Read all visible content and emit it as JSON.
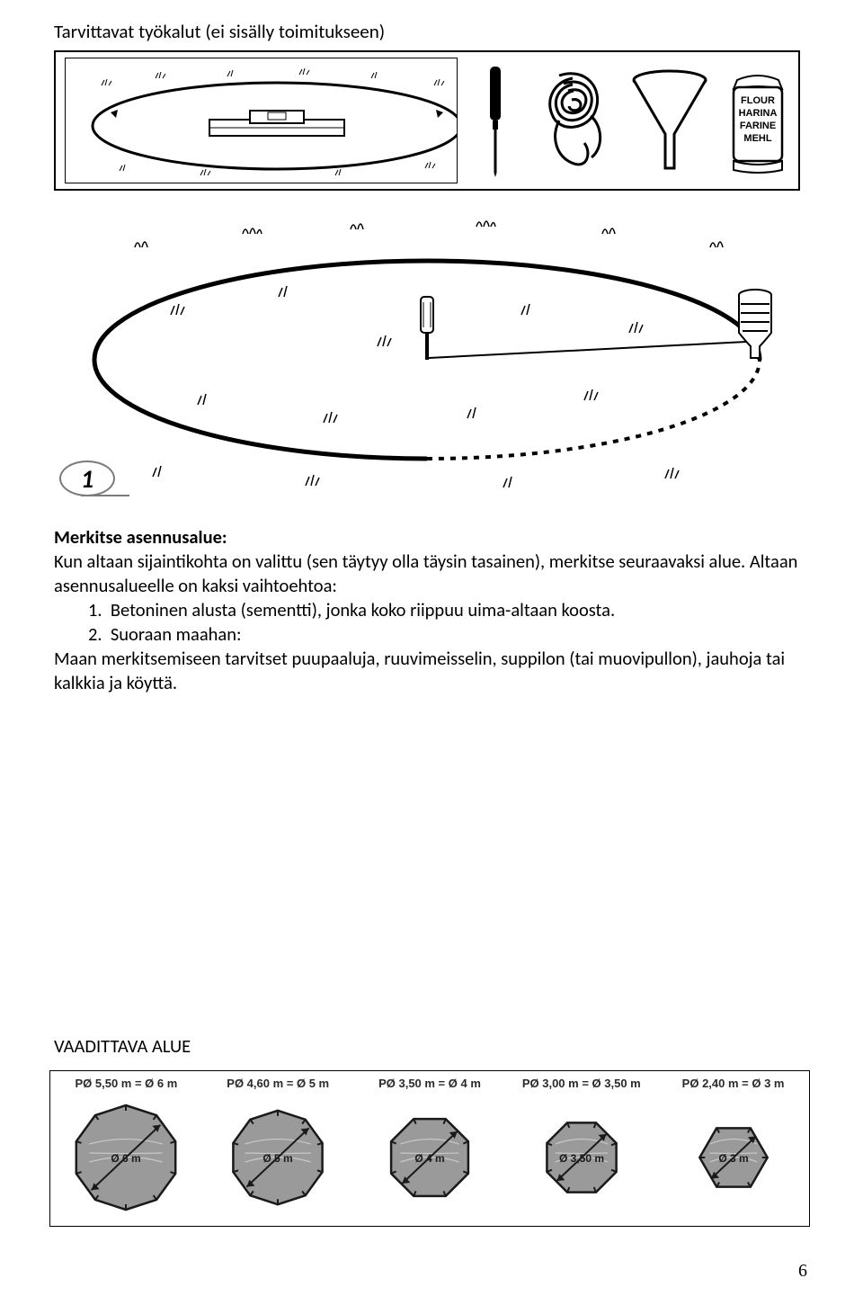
{
  "header": {
    "tools_title": "Tarvittavat työkalut (ei sisälly toimitukseen)"
  },
  "tool_icons": {
    "screwdriver": "screwdriver-icon",
    "rope": "rope-icon",
    "funnel": "funnel-icon",
    "flour_bag": "flour-bag-icon",
    "flour_lines": [
      "FLOUR",
      "HARINA",
      "FARINE",
      "MEHL"
    ]
  },
  "step": {
    "number": "1"
  },
  "body": {
    "heading": "Merkitse asennusalue:",
    "p1": "Kun altaan sijaintikohta on valittu (sen täytyy olla täysin tasainen), merkitse seuraavaksi alue. Altaan asennusalueelle on kaksi vaihtoehtoa:",
    "li1_label": "1.",
    "li1": "Betoninen alusta (sementti), jonka koko riippuu uima-altaan koosta.",
    "li2_label": "2.",
    "li2": "Suoraan maahan:",
    "p2": "Maan merkitsemiseen tarvitset puupaaluja, ruuvimeisselin, suppilon (tai muovipullon), jauhoja tai kalkkia ja köyttä."
  },
  "required_area": {
    "title": "VAADITTAVA ALUE",
    "items": [
      {
        "label": "PØ 5,50 m = Ø 6 m",
        "diameter": "Ø 6 m",
        "sides": 10,
        "scale": 1.0
      },
      {
        "label": "PØ 4,60 m = Ø 5 m",
        "diameter": "Ø 5 m",
        "sides": 10,
        "scale": 0.9
      },
      {
        "label": "PØ 3,50 m = Ø 4 m",
        "diameter": "Ø 4 m",
        "sides": 8,
        "scale": 0.8
      },
      {
        "label": "PØ 3,00 m = Ø 3,50 m",
        "diameter": "Ø 3,50 m",
        "sides": 8,
        "scale": 0.72
      },
      {
        "label": "PØ 2,40 m = Ø 3 m",
        "diameter": "Ø 3 m",
        "sides": 6,
        "scale": 0.65
      }
    ]
  },
  "colors": {
    "polygon_fill": "#9a9a9a",
    "polygon_stroke": "#1a1a1a",
    "arrow_stroke": "#1a1a1a"
  },
  "page_number": "6"
}
